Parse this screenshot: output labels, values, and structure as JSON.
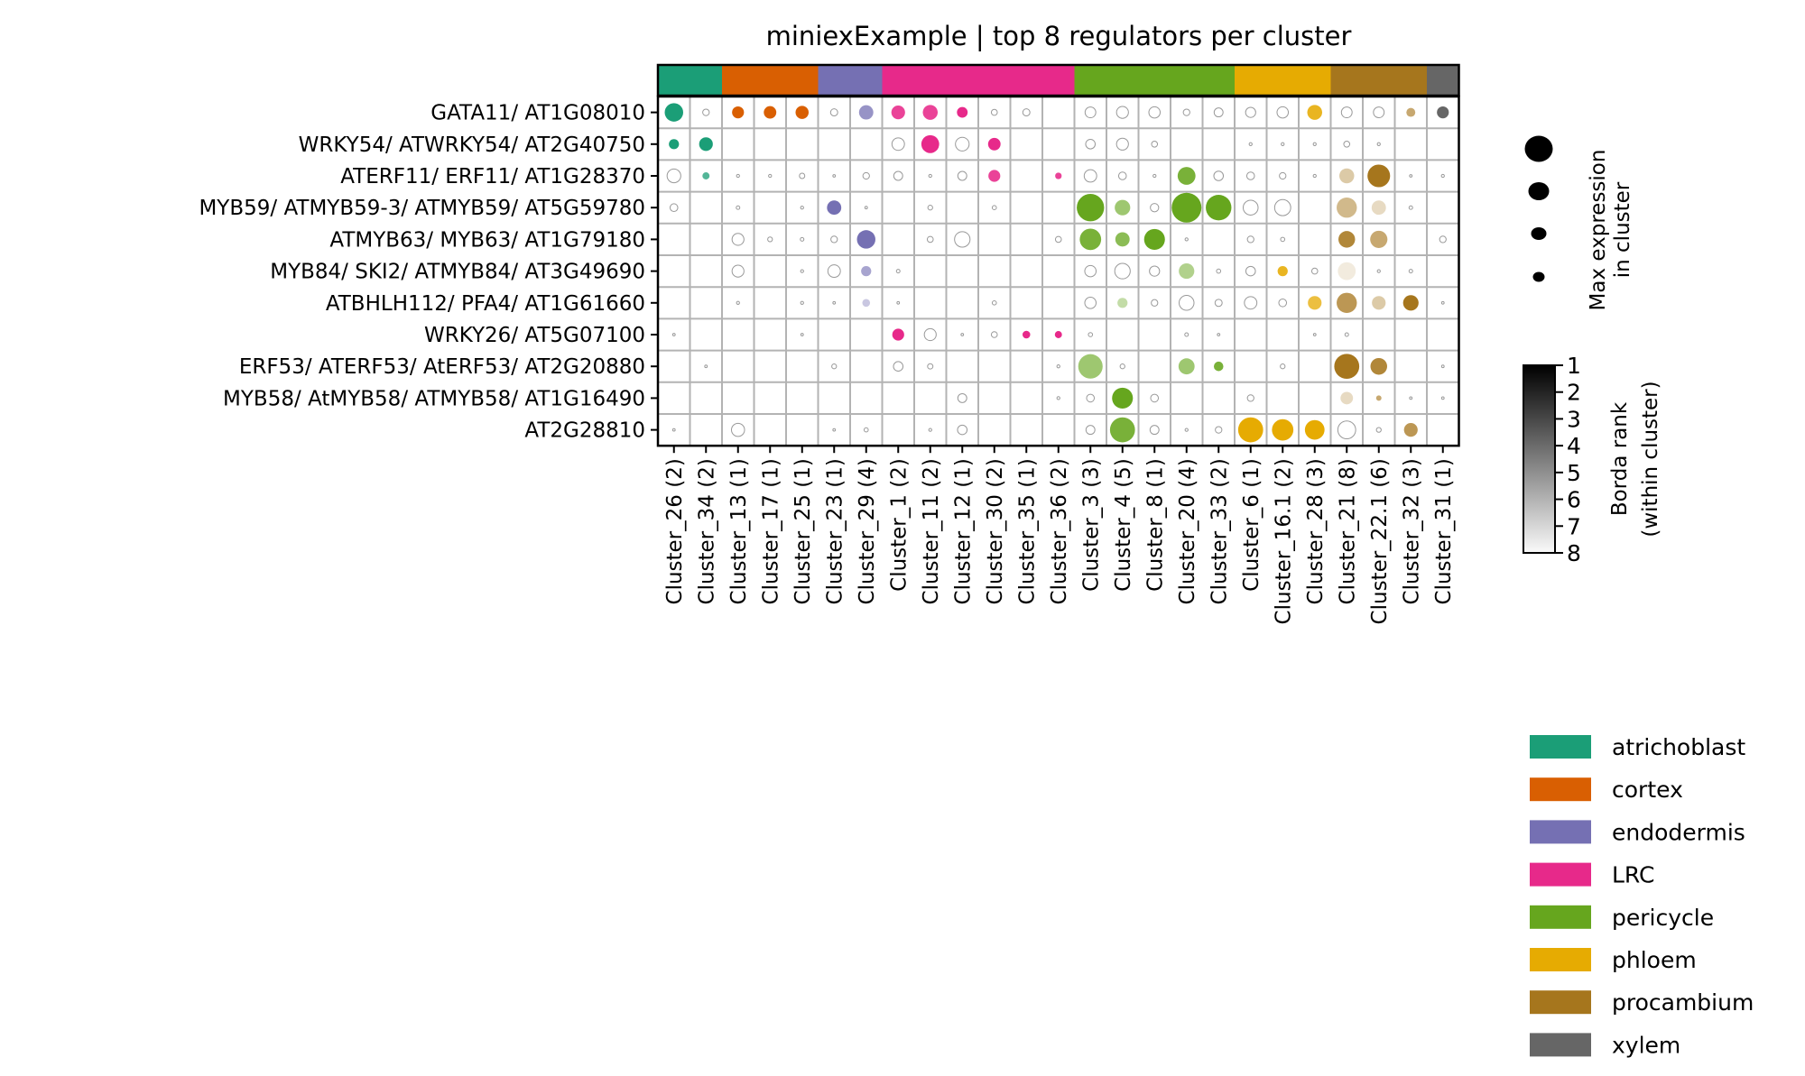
{
  "chart_data": {
    "type": "dot-heatmap",
    "title": "miniexExample | top 8 regulators per cluster",
    "size_legend_label": [
      "Max expression",
      "in cluster"
    ],
    "size_legend_values": [
      1.0,
      0.75,
      0.5,
      0.25
    ],
    "colorbar_label": [
      "Borda rank",
      "(within cluster)"
    ],
    "colorbar_ticks": [
      "1",
      "2",
      "3",
      "4",
      "5",
      "6",
      "7",
      "8"
    ],
    "celltypes": [
      {
        "name": "atrichoblast",
        "color": "#1b9e77"
      },
      {
        "name": "cortex",
        "color": "#d95f02"
      },
      {
        "name": "endodermis",
        "color": "#7570b3"
      },
      {
        "name": "LRC",
        "color": "#e7298a"
      },
      {
        "name": "pericycle",
        "color": "#66a61e"
      },
      {
        "name": "phloem",
        "color": "#e6ab02"
      },
      {
        "name": "procambium",
        "color": "#a6761d"
      },
      {
        "name": "xylem",
        "color": "#666666"
      }
    ],
    "columns": [
      {
        "label": "Cluster_26 (2)",
        "celltype": 0
      },
      {
        "label": "Cluster_34 (2)",
        "celltype": 0
      },
      {
        "label": "Cluster_13 (1)",
        "celltype": 1
      },
      {
        "label": "Cluster_17 (1)",
        "celltype": 1
      },
      {
        "label": "Cluster_25 (1)",
        "celltype": 1
      },
      {
        "label": "Cluster_23 (1)",
        "celltype": 2
      },
      {
        "label": "Cluster_29 (4)",
        "celltype": 2
      },
      {
        "label": "Cluster_1 (2)",
        "celltype": 3
      },
      {
        "label": "Cluster_11 (2)",
        "celltype": 3
      },
      {
        "label": "Cluster_12 (1)",
        "celltype": 3
      },
      {
        "label": "Cluster_30 (2)",
        "celltype": 3
      },
      {
        "label": "Cluster_35 (1)",
        "celltype": 3
      },
      {
        "label": "Cluster_36 (2)",
        "celltype": 3
      },
      {
        "label": "Cluster_3 (3)",
        "celltype": 4
      },
      {
        "label": "Cluster_4 (5)",
        "celltype": 4
      },
      {
        "label": "Cluster_8 (1)",
        "celltype": 4
      },
      {
        "label": "Cluster_20 (4)",
        "celltype": 4
      },
      {
        "label": "Cluster_33 (2)",
        "celltype": 4
      },
      {
        "label": "Cluster_6 (1)",
        "celltype": 5
      },
      {
        "label": "Cluster_16.1 (2)",
        "celltype": 5
      },
      {
        "label": "Cluster_28 (3)",
        "celltype": 5
      },
      {
        "label": "Cluster_21 (8)",
        "celltype": 6
      },
      {
        "label": "Cluster_22.1 (6)",
        "celltype": 6
      },
      {
        "label": "Cluster_32 (3)",
        "celltype": 6
      },
      {
        "label": "Cluster_31 (1)",
        "celltype": 7
      }
    ],
    "rows": [
      {
        "label": "GATA11/ AT1G08010",
        "cells": [
          [
            0.62,
            1
          ],
          [
            0.22,
            0
          ],
          [
            0.4,
            1
          ],
          [
            0.42,
            1
          ],
          [
            0.44,
            1
          ],
          [
            0.24,
            0
          ],
          [
            0.48,
            3
          ],
          [
            0.46,
            2
          ],
          [
            0.5,
            2
          ],
          [
            0.36,
            1
          ],
          [
            0.2,
            0
          ],
          [
            0.24,
            0
          ],
          null,
          [
            0.36,
            0
          ],
          [
            0.4,
            0
          ],
          [
            0.38,
            0
          ],
          [
            0.22,
            0
          ],
          [
            0.3,
            0
          ],
          [
            0.34,
            0
          ],
          [
            0.38,
            0
          ],
          [
            0.5,
            2
          ],
          [
            0.36,
            0
          ],
          [
            0.36,
            0
          ],
          [
            0.3,
            4
          ],
          [
            0.4,
            1
          ]
        ]
      },
      {
        "label": "WRKY54/ ATWRKY54/ AT2G40750",
        "cells": [
          [
            0.34,
            1
          ],
          [
            0.46,
            1
          ],
          null,
          null,
          null,
          null,
          null,
          [
            0.42,
            0
          ],
          [
            0.6,
            1
          ],
          [
            0.46,
            0
          ],
          [
            0.42,
            1
          ],
          null,
          null,
          [
            0.32,
            0
          ],
          [
            0.4,
            0
          ],
          [
            0.2,
            0
          ],
          null,
          null,
          [
            0.1,
            0
          ],
          [
            0.1,
            0
          ],
          [
            0.1,
            0
          ],
          [
            0.2,
            0
          ],
          [
            0.1,
            0
          ],
          null,
          null
        ]
      },
      {
        "label": "ATERF11/ ERF11/ AT1G28370",
        "cells": [
          [
            0.46,
            0
          ],
          [
            0.24,
            3
          ],
          [
            0.1,
            0
          ],
          [
            0.1,
            0
          ],
          [
            0.18,
            0
          ],
          [
            0.08,
            0
          ],
          [
            0.22,
            0
          ],
          [
            0.3,
            0
          ],
          [
            0.1,
            0
          ],
          [
            0.3,
            0
          ],
          [
            0.4,
            2
          ],
          null,
          [
            0.22,
            2
          ],
          [
            0.42,
            0
          ],
          [
            0.26,
            0
          ],
          [
            0.1,
            0
          ],
          [
            0.6,
            2
          ],
          [
            0.32,
            0
          ],
          [
            0.26,
            0
          ],
          [
            0.22,
            0
          ],
          [
            0.1,
            0
          ],
          [
            0.5,
            6
          ],
          [
            0.76,
            1
          ],
          [
            0.08,
            0
          ],
          [
            0.1,
            0
          ]
        ]
      },
      {
        "label": "MYB59/ ATMYB59-3/ ATMYB59/ AT5G59780",
        "cells": [
          [
            0.26,
            0
          ],
          null,
          [
            0.12,
            0
          ],
          null,
          [
            0.1,
            0
          ],
          [
            0.48,
            1
          ],
          [
            0.08,
            0
          ],
          null,
          [
            0.16,
            0
          ],
          null,
          [
            0.14,
            0
          ],
          null,
          null,
          [
            0.92,
            1
          ],
          [
            0.52,
            4
          ],
          [
            0.28,
            0
          ],
          [
            1.0,
            1
          ],
          [
            0.86,
            1
          ],
          [
            0.5,
            0
          ],
          [
            0.54,
            0
          ],
          null,
          [
            0.68,
            5
          ],
          [
            0.48,
            7
          ],
          [
            0.12,
            0
          ],
          null
        ]
      },
      {
        "label": "ATMYB63/ MYB63/ AT1G79180",
        "cells": [
          null,
          null,
          [
            0.4,
            0
          ],
          [
            0.16,
            0
          ],
          [
            0.12,
            0
          ],
          [
            0.22,
            0
          ],
          [
            0.62,
            1
          ],
          null,
          [
            0.2,
            0
          ],
          [
            0.52,
            0
          ],
          null,
          null,
          [
            0.2,
            0
          ],
          [
            0.72,
            2
          ],
          [
            0.48,
            3
          ],
          [
            0.7,
            1
          ],
          [
            0.1,
            0
          ],
          null,
          [
            0.22,
            0
          ],
          [
            0.14,
            0
          ],
          null,
          [
            0.56,
            2
          ],
          [
            0.58,
            4
          ],
          null,
          [
            0.22,
            0
          ]
        ]
      },
      {
        "label": "MYB84/ SKI2/ ATMYB84/ AT3G49690",
        "cells": [
          null,
          null,
          [
            0.4,
            0
          ],
          null,
          [
            0.1,
            0
          ],
          [
            0.42,
            0
          ],
          [
            0.34,
            4
          ],
          [
            0.12,
            0
          ],
          null,
          null,
          null,
          null,
          null,
          [
            0.38,
            0
          ],
          [
            0.52,
            0
          ],
          [
            0.34,
            0
          ],
          [
            0.52,
            5
          ],
          [
            0.14,
            0
          ],
          [
            0.32,
            0
          ],
          [
            0.34,
            2
          ],
          [
            0.2,
            0
          ],
          [
            0.6,
            8
          ],
          [
            0.1,
            0
          ],
          [
            0.12,
            0
          ],
          null
        ]
      },
      {
        "label": "ATBHLH112/ PFA4/ AT1G61660",
        "cells": [
          null,
          null,
          [
            0.1,
            0
          ],
          null,
          [
            0.1,
            0
          ],
          [
            0.08,
            0
          ],
          [
            0.26,
            6
          ],
          [
            0.08,
            0
          ],
          null,
          null,
          [
            0.14,
            0
          ],
          null,
          null,
          [
            0.38,
            0
          ],
          [
            0.34,
            6
          ],
          [
            0.22,
            0
          ],
          [
            0.5,
            0
          ],
          [
            0.24,
            0
          ],
          [
            0.42,
            0
          ],
          [
            0.26,
            0
          ],
          [
            0.46,
            3
          ],
          [
            0.68,
            3
          ],
          [
            0.46,
            6
          ],
          [
            0.52,
            1
          ],
          [
            0.08,
            0
          ]
        ]
      },
      {
        "label": "WRKY26/ AT5G07100",
        "cells": [
          [
            0.08,
            0
          ],
          null,
          null,
          null,
          [
            0.08,
            0
          ],
          null,
          null,
          [
            0.4,
            1
          ],
          [
            0.4,
            0
          ],
          [
            0.08,
            0
          ],
          [
            0.2,
            0
          ],
          [
            0.26,
            1
          ],
          [
            0.24,
            1
          ],
          [
            0.14,
            0
          ],
          null,
          null,
          [
            0.12,
            0
          ],
          [
            0.08,
            0
          ],
          null,
          null,
          [
            0.08,
            0
          ],
          [
            0.12,
            0
          ],
          null,
          null,
          null
        ]
      },
      {
        "label": "ERF53/ ATERF53/ AtERF53/ AT2G20880",
        "cells": [
          null,
          [
            0.08,
            0
          ],
          null,
          null,
          null,
          [
            0.16,
            0
          ],
          null,
          [
            0.32,
            0
          ],
          [
            0.18,
            0
          ],
          null,
          null,
          null,
          [
            0.1,
            0
          ],
          [
            0.82,
            4
          ],
          [
            0.16,
            0
          ],
          null,
          [
            0.54,
            4
          ],
          [
            0.32,
            2
          ],
          null,
          [
            0.16,
            0
          ],
          null,
          [
            0.84,
            1
          ],
          [
            0.56,
            2
          ],
          null,
          [
            0.08,
            0
          ]
        ]
      },
      {
        "label": "MYB58/ AtMYB58/ ATMYB58/ AT1G16490",
        "cells": [
          null,
          null,
          null,
          null,
          null,
          null,
          null,
          null,
          null,
          [
            0.3,
            0
          ],
          null,
          null,
          [
            0.1,
            0
          ],
          [
            0.26,
            0
          ],
          [
            0.7,
            1
          ],
          [
            0.26,
            0
          ],
          null,
          null,
          [
            0.22,
            0
          ],
          null,
          null,
          [
            0.42,
            7
          ],
          [
            0.18,
            4
          ],
          [
            0.08,
            0
          ],
          [
            0.08,
            0
          ]
        ]
      },
      {
        "label": "AT2G28810",
        "cells": [
          [
            0.08,
            0
          ],
          null,
          [
            0.44,
            0
          ],
          null,
          null,
          [
            0.08,
            0
          ],
          [
            0.14,
            0
          ],
          null,
          [
            0.1,
            0
          ],
          [
            0.32,
            0
          ],
          null,
          null,
          null,
          [
            0.3,
            0
          ],
          [
            0.84,
            2
          ],
          [
            0.3,
            0
          ],
          [
            0.1,
            0
          ],
          [
            0.22,
            0
          ],
          [
            0.84,
            1
          ],
          [
            0.72,
            1
          ],
          [
            0.66,
            1
          ],
          [
            0.6,
            0
          ],
          [
            0.16,
            0
          ],
          [
            0.46,
            3
          ],
          null
        ]
      }
    ]
  }
}
